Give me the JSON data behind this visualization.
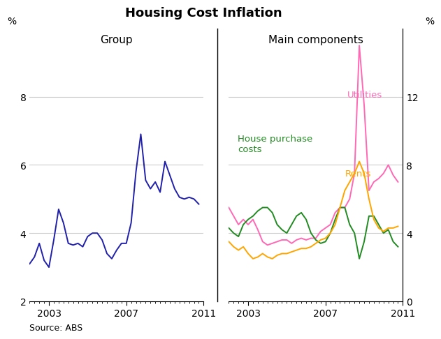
{
  "title": "Housing Cost Inflation",
  "source": "Source: ABS",
  "left_panel_title": "Group",
  "right_panel_title": "Main components",
  "left_ylabel": "%",
  "right_ylabel": "%",
  "left_ylim": [
    2,
    10
  ],
  "right_ylim": [
    0,
    16
  ],
  "left_yticks": [
    2,
    4,
    6,
    8
  ],
  "right_yticks": [
    0,
    4,
    8,
    12
  ],
  "left_ytick_labels": [
    "2",
    "4",
    "6",
    "8"
  ],
  "right_ytick_labels": [
    "0",
    "4",
    "8",
    "12"
  ],
  "group_color": "#2020aa",
  "utilities_color": "#ff69b4",
  "house_color": "#228B22",
  "rents_color": "#FFA500",
  "group_x": [
    2002.0,
    2002.25,
    2002.5,
    2002.75,
    2003.0,
    2003.25,
    2003.5,
    2003.75,
    2004.0,
    2004.25,
    2004.5,
    2004.75,
    2005.0,
    2005.25,
    2005.5,
    2005.75,
    2006.0,
    2006.25,
    2006.5,
    2006.75,
    2007.0,
    2007.25,
    2007.5,
    2007.75,
    2008.0,
    2008.25,
    2008.5,
    2008.75,
    2009.0,
    2009.25,
    2009.5,
    2009.75,
    2010.0,
    2010.25,
    2010.5,
    2010.75
  ],
  "group_y": [
    3.1,
    3.3,
    3.7,
    3.2,
    3.0,
    3.8,
    4.7,
    4.3,
    3.7,
    3.65,
    3.7,
    3.6,
    3.9,
    4.0,
    4.0,
    3.8,
    3.4,
    3.25,
    3.5,
    3.7,
    3.7,
    4.3,
    5.8,
    6.9,
    5.55,
    5.3,
    5.5,
    5.2,
    6.1,
    5.7,
    5.3,
    5.05,
    5.0,
    5.05,
    5.0,
    4.85
  ],
  "comp_x": [
    2002.0,
    2002.25,
    2002.5,
    2002.75,
    2003.0,
    2003.25,
    2003.5,
    2003.75,
    2004.0,
    2004.25,
    2004.5,
    2004.75,
    2005.0,
    2005.25,
    2005.5,
    2005.75,
    2006.0,
    2006.25,
    2006.5,
    2006.75,
    2007.0,
    2007.25,
    2007.5,
    2007.75,
    2008.0,
    2008.25,
    2008.5,
    2008.75,
    2009.0,
    2009.25,
    2009.5,
    2009.75,
    2010.0,
    2010.25,
    2010.5,
    2010.75
  ],
  "utilities_y": [
    5.5,
    5.0,
    4.5,
    4.8,
    4.5,
    4.8,
    4.2,
    3.5,
    3.3,
    3.4,
    3.5,
    3.6,
    3.6,
    3.4,
    3.6,
    3.7,
    3.6,
    3.7,
    3.7,
    4.1,
    4.3,
    4.5,
    5.2,
    5.5,
    5.5,
    6.0,
    7.5,
    15.0,
    11.5,
    6.5,
    7.0,
    7.2,
    7.5,
    8.0,
    7.4,
    7.0
  ],
  "house_y": [
    4.3,
    4.0,
    3.8,
    4.5,
    4.8,
    5.0,
    5.3,
    5.5,
    5.5,
    5.2,
    4.5,
    4.2,
    4.0,
    4.5,
    5.0,
    5.2,
    4.8,
    4.0,
    3.6,
    3.4,
    3.5,
    4.0,
    4.8,
    5.5,
    5.5,
    4.5,
    4.0,
    2.5,
    3.5,
    5.0,
    5.0,
    4.5,
    4.0,
    4.2,
    3.5,
    3.2
  ],
  "rents_y": [
    3.5,
    3.2,
    3.0,
    3.2,
    2.8,
    2.5,
    2.6,
    2.8,
    2.6,
    2.5,
    2.7,
    2.8,
    2.8,
    2.9,
    3.0,
    3.1,
    3.1,
    3.2,
    3.4,
    3.6,
    3.7,
    4.0,
    4.5,
    5.5,
    6.5,
    7.0,
    7.5,
    8.2,
    7.5,
    6.0,
    4.8,
    4.3,
    4.1,
    4.3,
    4.3,
    4.4
  ]
}
